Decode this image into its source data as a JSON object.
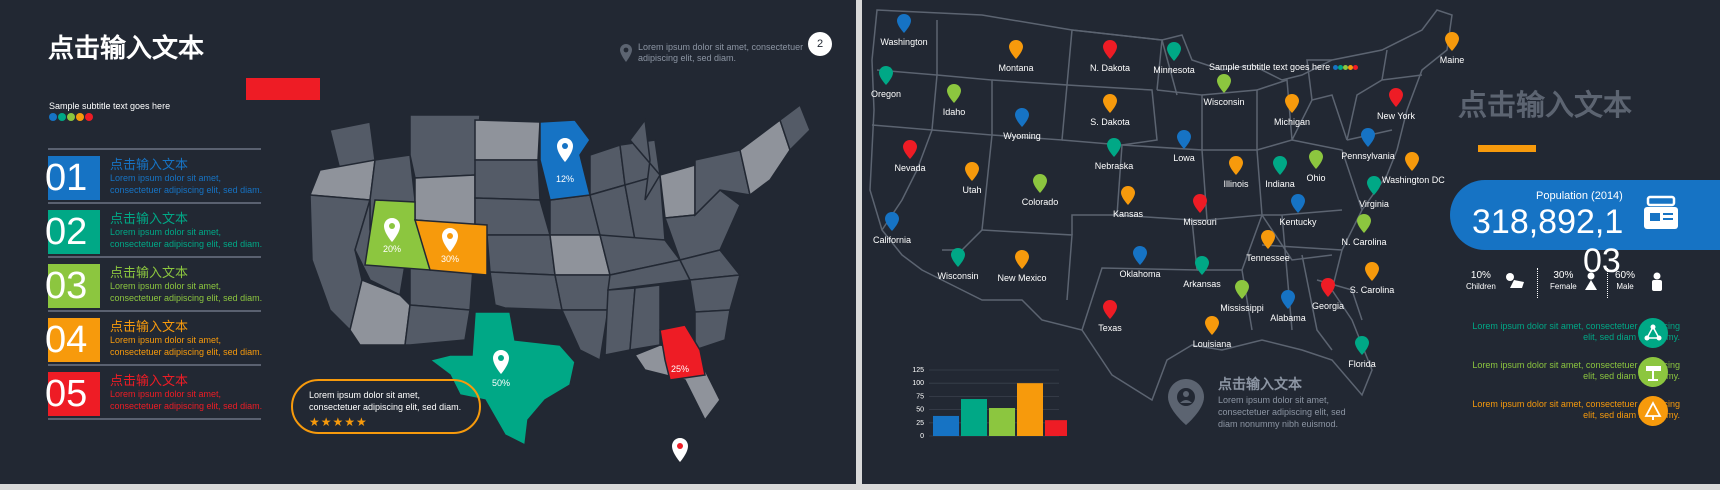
{
  "slide1": {
    "title": "点击输入文本",
    "subtitle": "Sample subtitle text goes here",
    "dot_colors": [
      "#1673c4",
      "#00a886",
      "#8cc63f",
      "#f79a0c",
      "#ee1c25"
    ],
    "pin_note": "Lorem ipsum dolor  sit amet, consectetuer adipiscing elit, sed diam.",
    "page_number": "2",
    "list": [
      {
        "num": "01",
        "heading": "点击输入文本",
        "text": "Lorem ipsum dolor  sit amet, consectetuer adipiscing elit, sed diam.",
        "color": "#1673c4"
      },
      {
        "num": "02",
        "heading": "点击输入文本",
        "text": "Lorem ipsum dolor  sit amet, consectetuer adipiscing elit, sed diam.",
        "color": "#00a886"
      },
      {
        "num": "03",
        "heading": "点击输入文本",
        "text": "Lorem ipsum dolor  sit amet, consectetuer adipiscing elit, sed diam.",
        "color": "#8cc63f"
      },
      {
        "num": "04",
        "heading": "点击输入文本",
        "text": "Lorem ipsum dolor  sit amet, consectetuer adipiscing elit, sed diam.",
        "color": "#f79a0c"
      },
      {
        "num": "05",
        "heading": "点击输入文本",
        "text": "Lorem ipsum dolor  sit amet, consectetuer adipiscing elit, sed diam.",
        "color": "#ee1c25"
      }
    ],
    "quote": "Lorem ipsum dolor  sit amet, consectetuer adipiscing elit, sed diam.",
    "stars": "★★★★★",
    "map_labels": {
      "minnesota": "12%",
      "utah": "20%",
      "colorado": "30%",
      "texas": "50%",
      "georgia": "25%"
    }
  },
  "slide2": {
    "states": [
      {
        "name": "Washington",
        "color": "#1673c4"
      },
      {
        "name": "Montana",
        "color": "#f79a0c"
      },
      {
        "name": "N. Dakota",
        "color": "#ee1c25"
      },
      {
        "name": "Minnesota",
        "color": "#00a886"
      },
      {
        "name": "Oregon",
        "color": "#00a886"
      },
      {
        "name": "Idaho",
        "color": "#8cc63f"
      },
      {
        "name": "S. Dakota",
        "color": "#f79a0c"
      },
      {
        "name": "Wyoming",
        "color": "#1673c4"
      },
      {
        "name": "Wisconsin",
        "color": "#8cc63f"
      },
      {
        "name": "Michigan",
        "color": "#f79a0c"
      },
      {
        "name": "New York",
        "color": "#ee1c25"
      },
      {
        "name": "Maine",
        "color": "#f79a0c"
      },
      {
        "name": "Nevada",
        "color": "#ee1c25"
      },
      {
        "name": "Nebraska",
        "color": "#00a886"
      },
      {
        "name": "Lowa",
        "color": "#1673c4"
      },
      {
        "name": "Illinois",
        "color": "#f79a0c"
      },
      {
        "name": "Indiana",
        "color": "#00a886"
      },
      {
        "name": "Ohio",
        "color": "#8cc63f"
      },
      {
        "name": "Pennsylvania",
        "color": "#1673c4"
      },
      {
        "name": "Washington DC",
        "color": "#f79a0c"
      },
      {
        "name": "Utah",
        "color": "#f79a0c"
      },
      {
        "name": "Colorado",
        "color": "#8cc63f"
      },
      {
        "name": "Kansas",
        "color": "#f79a0c"
      },
      {
        "name": "Missouri",
        "color": "#ee1c25"
      },
      {
        "name": "Kentucky",
        "color": "#1673c4"
      },
      {
        "name": "Virginia",
        "color": "#00a886"
      },
      {
        "name": "California",
        "color": "#1673c4"
      },
      {
        "name": "N. Carolina",
        "color": "#8cc63f"
      },
      {
        "name": "Tennessee",
        "color": "#f79a0c"
      },
      {
        "name": "Wisconsin",
        "color": "#00a886"
      },
      {
        "name": "New Mexico",
        "color": "#f79a0c"
      },
      {
        "name": "Oklahoma",
        "color": "#1673c4"
      },
      {
        "name": "Arkansas",
        "color": "#00a886"
      },
      {
        "name": "S. Carolina",
        "color": "#f79a0c"
      },
      {
        "name": "Mississippi",
        "color": "#8cc63f"
      },
      {
        "name": "Alabama",
        "color": "#1673c4"
      },
      {
        "name": "Georgia",
        "color": "#ee1c25"
      },
      {
        "name": "Texas",
        "color": "#ee1c25"
      },
      {
        "name": "Louisiana",
        "color": "#f79a0c"
      },
      {
        "name": "Florida",
        "color": "#00a886"
      }
    ],
    "callout": "Sample subtitle text goes here",
    "title": "点击输入文本",
    "population_label": "Population  (2014)",
    "population_value": "318,892,1",
    "population_overlap": "03",
    "demographics": [
      {
        "pct": "10%",
        "label": "Children"
      },
      {
        "pct": "30%",
        "label": "Female"
      },
      {
        "pct": "60%",
        "label": "Male"
      }
    ],
    "features": [
      {
        "text": "Lorem ipsum dolor  sit amet, consectetuer adipiscing elit, sed diam nonummy.",
        "color": "#00a886",
        "icon": "network-icon"
      },
      {
        "text": "Lorem ipsum dolor  sit amet, consectetuer adipiscing elit, sed diam nonummy.",
        "color": "#8cc63f",
        "icon": "signpost-icon"
      },
      {
        "text": "Lorem ipsum dolor  sit amet, consectetuer adipiscing elit, sed diam nonummy.",
        "color": "#f79a0c",
        "icon": "tree-icon"
      }
    ],
    "note_heading": "点击输入文本",
    "note_text": "Lorem ipsum dolor  sit amet, consectetuer adipiscing elit, sed diam nonummy nibh euismod."
  },
  "chart_data": {
    "type": "bar",
    "categories": [
      "",
      "",
      "",
      "",
      ""
    ],
    "values": [
      38,
      70,
      53,
      100,
      30
    ],
    "colors": [
      "#1673c4",
      "#00a886",
      "#8cc63f",
      "#f79a0c",
      "#ee1c25"
    ],
    "yticks": [
      0,
      25,
      50,
      75,
      100,
      125
    ],
    "ylim": [
      0,
      125
    ],
    "title": "",
    "xlabel": "",
    "ylabel": ""
  }
}
